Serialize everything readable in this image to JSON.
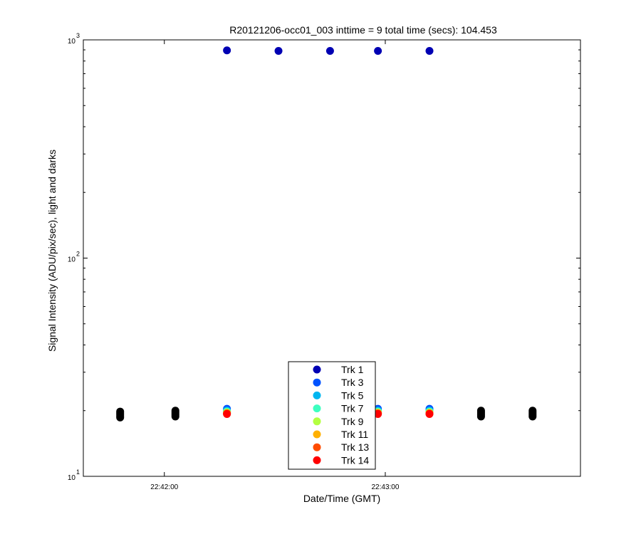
{
  "chart_data": {
    "type": "scatter",
    "title": "R20121206-occ01_003 inttime = 9 total time (secs): 104.453",
    "xlabel": "Date/Time (GMT)",
    "ylabel": "Signal Intensity (ADU/pix/sec), light and darks",
    "y_scale": "log",
    "ylim": [
      10,
      1000
    ],
    "xlim": [
      "22:41:38",
      "22:43:53"
    ],
    "x_ticks": [
      "22:42:00",
      "22:43:00"
    ],
    "y_ticks": [
      {
        "base": "10",
        "exp": "1"
      },
      {
        "base": "10",
        "exp": "2"
      },
      {
        "base": "10",
        "exp": "3"
      }
    ],
    "grid": false,
    "legend_position": "bottom-center",
    "series": [
      {
        "name": "Trk 1",
        "color": "#0000b3",
        "x": [
          "22:42:17",
          "22:42:31",
          "22:42:45",
          "22:42:58",
          "22:43:12"
        ],
        "y": [
          895,
          890,
          890,
          890,
          890
        ]
      },
      {
        "name": "Trk 3",
        "color": "#0052ff",
        "x": [
          "22:42:17",
          "22:42:58",
          "22:43:12"
        ],
        "y": [
          20.4,
          20.4,
          20.4
        ]
      },
      {
        "name": "Trk 5",
        "color": "#00b6f0",
        "x": [
          "22:42:17",
          "22:42:58",
          "22:43:12"
        ],
        "y": [
          20.0,
          20.0,
          20.0
        ]
      },
      {
        "name": "Trk 7",
        "color": "#3dffc0",
        "x": [
          "22:42:17",
          "22:42:58",
          "22:43:12"
        ],
        "y": [
          19.8,
          19.8,
          19.8
        ]
      },
      {
        "name": "Trk 9",
        "color": "#b3ff41",
        "x": [
          "22:42:17",
          "22:42:58",
          "22:43:12"
        ],
        "y": [
          19.6,
          19.6,
          19.6
        ]
      },
      {
        "name": "Trk 11",
        "color": "#ffb000",
        "x": [
          "22:42:17",
          "22:42:58",
          "22:43:12"
        ],
        "y": [
          19.5,
          19.5,
          19.5
        ]
      },
      {
        "name": "Trk 13",
        "color": "#ff4c00",
        "x": [
          "22:42:17",
          "22:42:58",
          "22:43:12"
        ],
        "y": [
          19.4,
          19.4,
          19.4
        ]
      },
      {
        "name": "Trk 14",
        "color": "#ff0000",
        "x": [
          "22:42:17",
          "22:42:58",
          "22:43:12"
        ],
        "y": [
          19.3,
          19.3,
          19.3
        ]
      }
    ],
    "darks": {
      "color": "#000000",
      "x": [
        "22:41:48",
        "22:41:48",
        "22:41:48",
        "22:41:48",
        "22:41:48",
        "22:42:03",
        "22:42:03",
        "22:42:03",
        "22:42:03",
        "22:42:03",
        "22:43:26",
        "22:43:26",
        "22:43:26",
        "22:43:26",
        "22:43:26",
        "22:43:40",
        "22:43:40",
        "22:43:40",
        "22:43:40",
        "22:43:40"
      ],
      "y": [
        18.6,
        18.9,
        19.2,
        19.5,
        19.8,
        18.8,
        19.1,
        19.4,
        19.7,
        20.0,
        18.8,
        19.1,
        19.4,
        19.7,
        20.0,
        18.8,
        19.1,
        19.4,
        19.7,
        20.0
      ]
    }
  }
}
